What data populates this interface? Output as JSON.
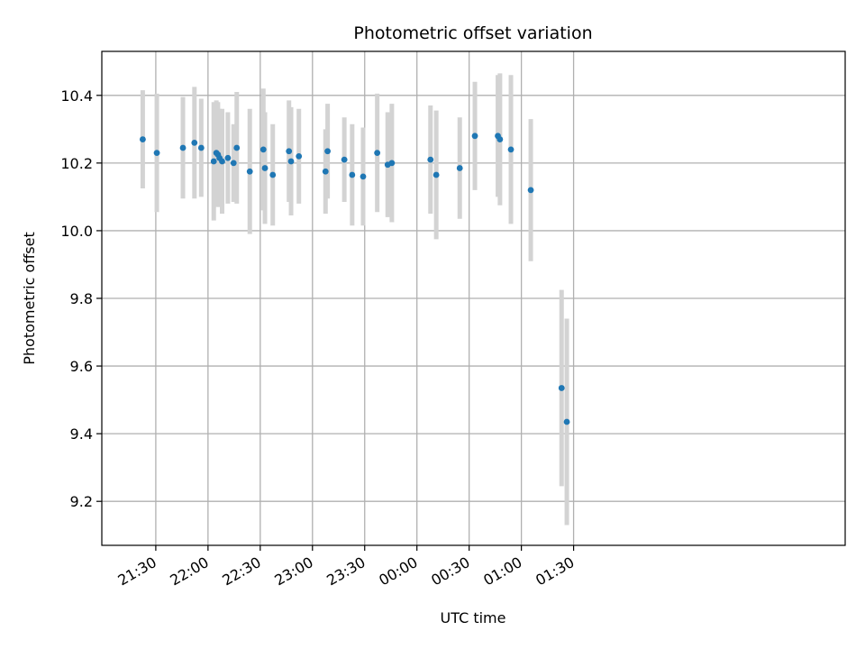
{
  "chart_data": {
    "type": "scatter",
    "title": "Photometric offset variation",
    "xlabel": "UTC time",
    "ylabel": "Photometric offset",
    "x_unit": "minutes",
    "x_axis_start": "21:30",
    "xlim": [
      -31,
      396
    ],
    "ylim": [
      9.07,
      10.53
    ],
    "grid": true,
    "x_ticks": [
      {
        "v": 0,
        "label": "21:30"
      },
      {
        "v": 30,
        "label": "22:00"
      },
      {
        "v": 60,
        "label": "22:30"
      },
      {
        "v": 90,
        "label": "23:00"
      },
      {
        "v": 120,
        "label": "23:30"
      },
      {
        "v": 150,
        "label": "00:00"
      },
      {
        "v": 180,
        "label": "00:30"
      },
      {
        "v": 210,
        "label": "01:00"
      },
      {
        "v": 240,
        "label": "01:30"
      }
    ],
    "y_ticks": [
      {
        "v": 9.2,
        "label": "9.2"
      },
      {
        "v": 9.4,
        "label": "9.4"
      },
      {
        "v": 9.6,
        "label": "9.6"
      },
      {
        "v": 9.8,
        "label": "9.8"
      },
      {
        "v": 10.0,
        "label": "10.0"
      },
      {
        "v": 10.2,
        "label": "10.2"
      },
      {
        "v": 10.4,
        "label": "10.4"
      }
    ],
    "colors": {
      "point": "#1f77b4",
      "errorbar": "#d3d3d3",
      "grid": "#b0b0b0"
    },
    "points": [
      {
        "x": -7.5,
        "y": 10.27,
        "err": 0.145
      },
      {
        "x": 0.6,
        "y": 10.23,
        "err": 0.175
      },
      {
        "x": 15.6,
        "y": 10.245,
        "err": 0.15
      },
      {
        "x": 22.2,
        "y": 10.26,
        "err": 0.165
      },
      {
        "x": 26.1,
        "y": 10.245,
        "err": 0.145
      },
      {
        "x": 33.3,
        "y": 10.205,
        "err": 0.175
      },
      {
        "x": 34.8,
        "y": 10.23,
        "err": 0.155
      },
      {
        "x": 35.7,
        "y": 10.225,
        "err": 0.155
      },
      {
        "x": 36.6,
        "y": 10.215,
        "err": 0.145
      },
      {
        "x": 38.1,
        "y": 10.205,
        "err": 0.155
      },
      {
        "x": 41.4,
        "y": 10.215,
        "err": 0.135
      },
      {
        "x": 44.7,
        "y": 10.2,
        "err": 0.115
      },
      {
        "x": 46.5,
        "y": 10.245,
        "err": 0.165
      },
      {
        "x": 54.0,
        "y": 10.175,
        "err": 0.185
      },
      {
        "x": 61.8,
        "y": 10.24,
        "err": 0.18
      },
      {
        "x": 62.7,
        "y": 10.185,
        "err": 0.165
      },
      {
        "x": 67.2,
        "y": 10.165,
        "err": 0.15
      },
      {
        "x": 76.5,
        "y": 10.235,
        "err": 0.15
      },
      {
        "x": 77.7,
        "y": 10.205,
        "err": 0.16
      },
      {
        "x": 82.2,
        "y": 10.22,
        "err": 0.14
      },
      {
        "x": 97.5,
        "y": 10.175,
        "err": 0.125
      },
      {
        "x": 98.7,
        "y": 10.235,
        "err": 0.14
      },
      {
        "x": 108.3,
        "y": 10.21,
        "err": 0.125
      },
      {
        "x": 112.8,
        "y": 10.165,
        "err": 0.15
      },
      {
        "x": 119.1,
        "y": 10.16,
        "err": 0.145
      },
      {
        "x": 127.2,
        "y": 10.23,
        "err": 0.175
      },
      {
        "x": 133.2,
        "y": 10.195,
        "err": 0.155
      },
      {
        "x": 135.6,
        "y": 10.2,
        "err": 0.175
      },
      {
        "x": 157.8,
        "y": 10.21,
        "err": 0.16
      },
      {
        "x": 161.1,
        "y": 10.165,
        "err": 0.19
      },
      {
        "x": 174.6,
        "y": 10.185,
        "err": 0.15
      },
      {
        "x": 183.3,
        "y": 10.28,
        "err": 0.16
      },
      {
        "x": 196.5,
        "y": 10.28,
        "err": 0.18
      },
      {
        "x": 197.7,
        "y": 10.27,
        "err": 0.195
      },
      {
        "x": 204.0,
        "y": 10.24,
        "err": 0.22
      },
      {
        "x": 215.4,
        "y": 10.12,
        "err": 0.21
      },
      {
        "x": 233.1,
        "y": 9.535,
        "err": 0.29
      },
      {
        "x": 236.1,
        "y": 9.435,
        "err": 0.305
      }
    ]
  }
}
